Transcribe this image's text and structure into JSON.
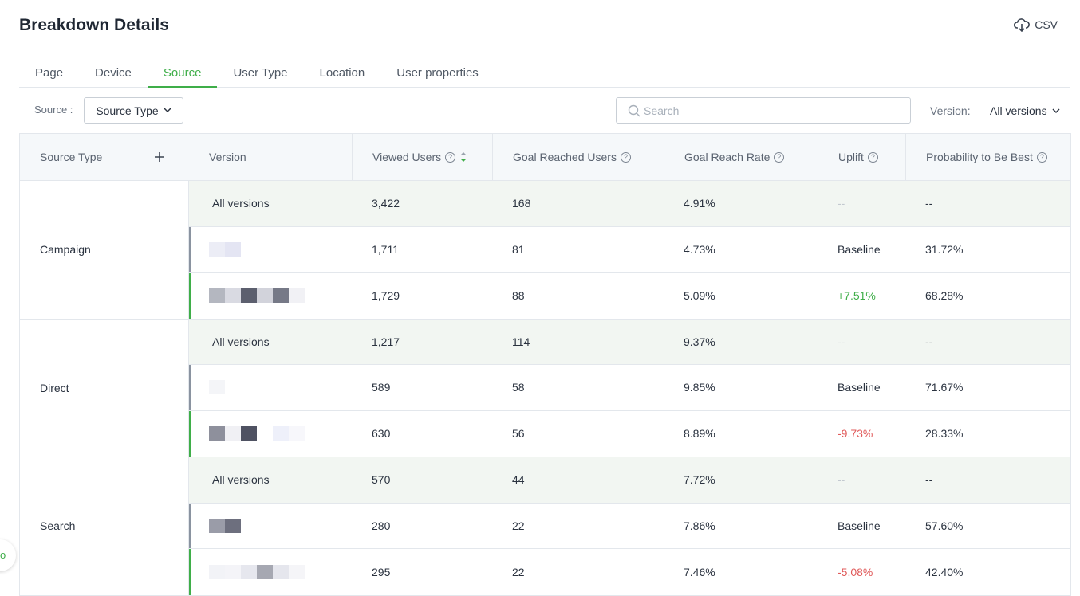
{
  "header": {
    "title": "Breakdown Details",
    "csv_label": "CSV"
  },
  "tabs": [
    {
      "label": "Page",
      "active": false
    },
    {
      "label": "Device",
      "active": false
    },
    {
      "label": "Source",
      "active": true
    },
    {
      "label": "User Type",
      "active": false
    },
    {
      "label": "Location",
      "active": false
    },
    {
      "label": "User properties",
      "active": false
    }
  ],
  "filters": {
    "source_label": "Source :",
    "source_value": "Source Type",
    "search_placeholder": "Search",
    "version_label": "Version:",
    "version_value": "All versions"
  },
  "table": {
    "headers": [
      "Source Type",
      "Version",
      "Viewed Users",
      "Goal Reached Users",
      "Goal Reach Rate",
      "Uplift",
      "Probability to Be Best"
    ],
    "groups": [
      {
        "label": "Campaign",
        "rows": [
          {
            "version": "All versions",
            "viewed": "3,422",
            "reached": "168",
            "rate": "4.91%",
            "uplift": "--",
            "prob": "--"
          },
          {
            "version": "",
            "viewed": "1,711",
            "reached": "81",
            "rate": "4.73%",
            "uplift": "Baseline",
            "prob": "31.72%"
          },
          {
            "version": "",
            "viewed": "1,729",
            "reached": "88",
            "rate": "5.09%",
            "uplift": "+7.51%",
            "prob": "68.28%"
          }
        ]
      },
      {
        "label": "Direct",
        "rows": [
          {
            "version": "All versions",
            "viewed": "1,217",
            "reached": "114",
            "rate": "9.37%",
            "uplift": "--",
            "prob": "--"
          },
          {
            "version": "",
            "viewed": "589",
            "reached": "58",
            "rate": "9.85%",
            "uplift": "Baseline",
            "prob": "71.67%"
          },
          {
            "version": "",
            "viewed": "630",
            "reached": "56",
            "rate": "8.89%",
            "uplift": "-9.73%",
            "prob": "28.33%"
          }
        ]
      },
      {
        "label": "Search",
        "rows": [
          {
            "version": "All versions",
            "viewed": "570",
            "reached": "44",
            "rate": "7.72%",
            "uplift": "--",
            "prob": "--"
          },
          {
            "version": "",
            "viewed": "280",
            "reached": "22",
            "rate": "7.86%",
            "uplift": "Baseline",
            "prob": "57.60%"
          },
          {
            "version": "",
            "viewed": "295",
            "reached": "22",
            "rate": "7.46%",
            "uplift": "-5.08%",
            "prob": "42.40%"
          }
        ]
      }
    ]
  },
  "colors": {
    "accent": "#3fae49",
    "negative": "#e05a5a",
    "baseline_bar": "#8a93a0",
    "variant_bar": "#3fae49"
  }
}
